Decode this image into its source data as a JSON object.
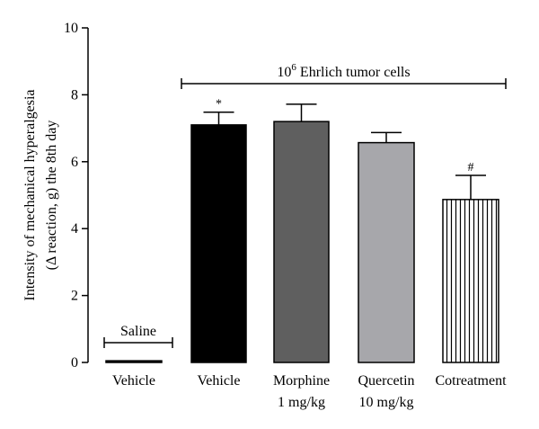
{
  "chart_data": {
    "type": "bar",
    "ylabel_lines": [
      "Intensity of mechanical hyperalgesia",
      "(Δ reaction, g) the 8th day"
    ],
    "ylim": [
      0,
      10
    ],
    "yticks": [
      0,
      2,
      4,
      6,
      8,
      10
    ],
    "bars": [
      {
        "label": [
          "Vehicle"
        ],
        "value": 0.05,
        "error": 0.0,
        "fill": "#000000",
        "pattern": "none",
        "sig": ""
      },
      {
        "label": [
          "Vehicle"
        ],
        "value": 7.1,
        "error": 0.38,
        "fill": "#000000",
        "pattern": "none",
        "sig": "*"
      },
      {
        "label": [
          "Morphine",
          "1 mg/kg"
        ],
        "value": 7.2,
        "error": 0.52,
        "fill": "#5f5f5f",
        "pattern": "none",
        "sig": ""
      },
      {
        "label": [
          "Quercetin",
          "10 mg/kg"
        ],
        "value": 6.57,
        "error": 0.3,
        "fill": "#a7a7ab",
        "pattern": "none",
        "sig": ""
      },
      {
        "label": [
          "Cotreatment"
        ],
        "value": 4.87,
        "error": 0.72,
        "fill": "#ffffff",
        "pattern": "vertical-lines",
        "sig": "#"
      }
    ],
    "groups": [
      {
        "text": "Saline",
        "superscript": "",
        "from_bar": 0,
        "to_bar": 0
      },
      {
        "text": " Ehrlich tumor cells",
        "prefix": "10",
        "superscript": "6",
        "from_bar": 1,
        "to_bar": 4
      }
    ]
  }
}
